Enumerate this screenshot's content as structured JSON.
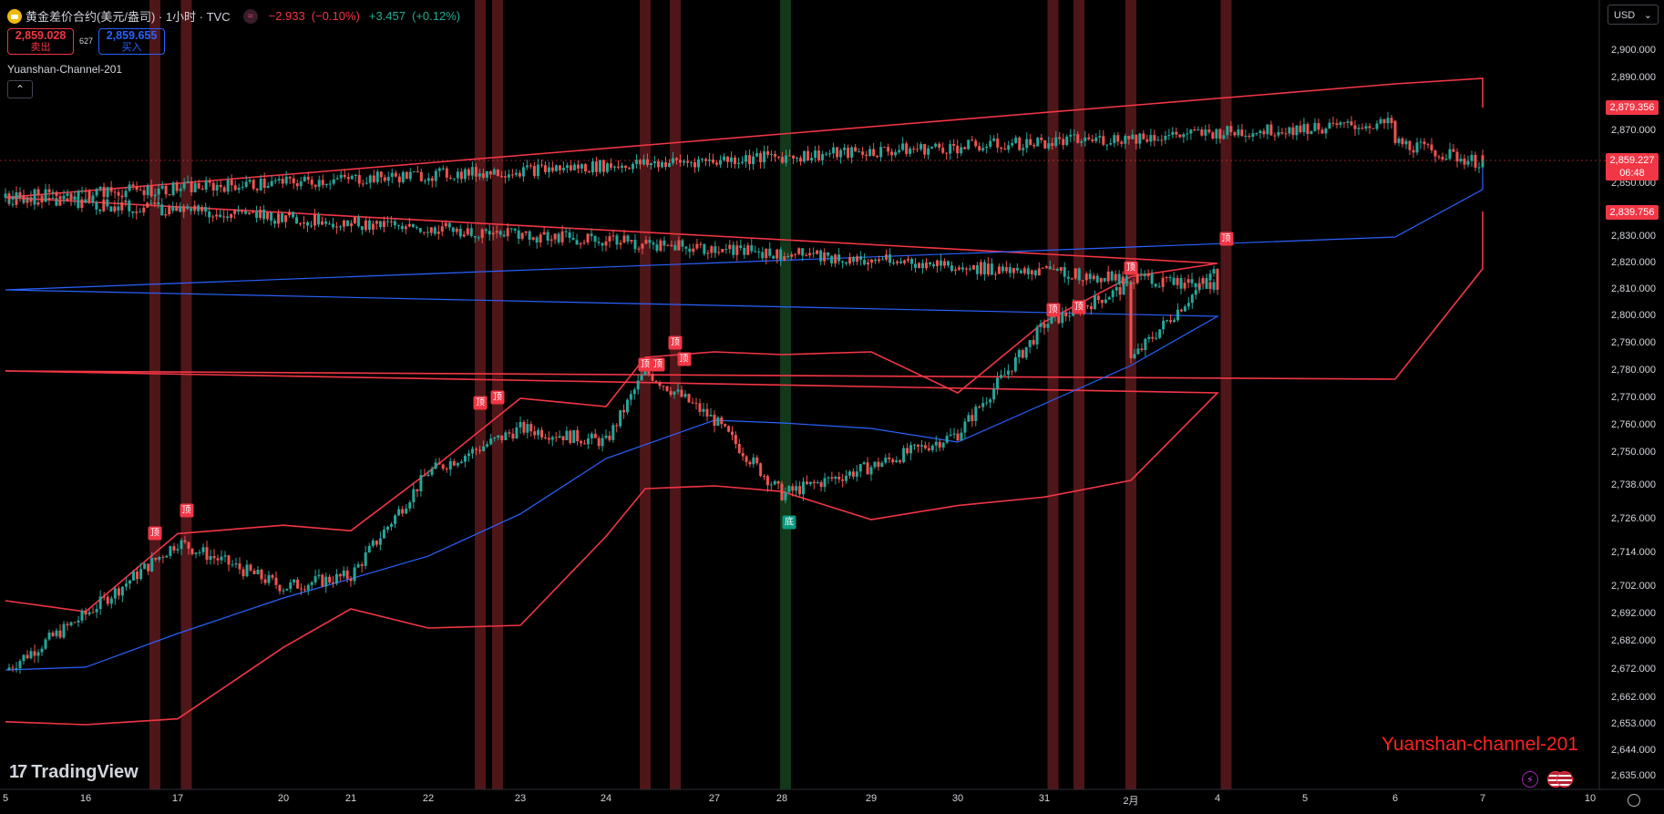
{
  "header": {
    "title": "黄金差价合约(美元/盎司) · 1小时 · TVC",
    "change_abs": "−2.933",
    "change_pct": "(−0.10%)",
    "change2_abs": "+3.457",
    "change2_pct": "(+0.12%)",
    "wave_icon": "≈"
  },
  "trade": {
    "sell_price": "2,859.028",
    "sell_label": "卖出",
    "spread": "627",
    "buy_price": "2,859.655",
    "buy_label": "买入"
  },
  "indicator": {
    "name": "Yuanshan-Channel-201",
    "collapse": "⌃"
  },
  "currency": {
    "label": "USD",
    "arrow": "⌄"
  },
  "price_axis": {
    "ticks": [
      "2,900.000",
      "2,890.000",
      "2,879.356",
      "2,870.000",
      "2,859.227",
      "2,850.000",
      "2,839.756",
      "2,830.000",
      "2,820.000",
      "2,810.000",
      "2,800.000",
      "2,790.000",
      "2,780.000",
      "2,770.000",
      "2,760.000",
      "2,750.000",
      "2,738.000",
      "2,726.000",
      "2,714.000",
      "2,702.000",
      "2,692.000",
      "2,682.000",
      "2,672.000",
      "2,662.000",
      "2,653.000",
      "2,644.000",
      "2,635.000"
    ],
    "plain_ticks": [
      "2,900.000",
      "2,890.000",
      "2,870.000",
      "2,850.000",
      "2,830.000",
      "2,820.000",
      "2,810.000",
      "2,800.000",
      "2,790.000",
      "2,780.000",
      "2,770.000",
      "2,760.000",
      "2,750.000",
      "2,738.000",
      "2,726.000",
      "2,714.000",
      "2,702.000",
      "2,692.000",
      "2,682.000",
      "2,672.000",
      "2,662.000",
      "2,653.000",
      "2,644.000",
      "2,635.000"
    ],
    "tag_upper": "2,879.356",
    "tag_current": "2,859.227",
    "tag_countdown": "06:48",
    "tag_lower": "2,839.756"
  },
  "time_axis": {
    "labels": [
      "5",
      "16",
      "17",
      "20",
      "21",
      "22",
      "23",
      "24",
      "27",
      "28",
      "29",
      "30",
      "31",
      "2月",
      "4",
      "5",
      "6",
      "7",
      "10"
    ]
  },
  "signals": {
    "top_label": "顶",
    "bottom_label": "底"
  },
  "branding": {
    "tradingview": "TradingView",
    "tv_mark": "17",
    "watermark": "Yuanshan-channel-201"
  },
  "colors": {
    "up": "#26a69a",
    "down": "#ef5350",
    "band": "#f23645",
    "mid": "#2962ff",
    "top_zone": "#5c1a1c",
    "bottom_zone": "#143d1c",
    "bg": "#000000",
    "watermark": "#ff2222"
  },
  "chart_data": {
    "type": "candlestick",
    "symbol": "黄金差价合约(美元/盎司)",
    "interval": "1小时",
    "source": "TVC",
    "x": [
      "5",
      "16",
      "17",
      "20",
      "21",
      "22",
      "23",
      "24",
      "27",
      "28",
      "29",
      "30",
      "31",
      "2月",
      "4",
      "5",
      "6",
      "7",
      "10"
    ],
    "ylim": [
      2635,
      2905
    ],
    "close_path": [
      [
        "5",
        2672
      ],
      [
        "16",
        2692
      ],
      [
        "17",
        2718
      ],
      [
        "20",
        2702
      ],
      [
        "21",
        2706
      ],
      [
        "22",
        2743
      ],
      [
        "23",
        2759
      ],
      [
        "24",
        2754
      ],
      [
        "24.4",
        2780
      ],
      [
        "27",
        2762
      ],
      [
        "28",
        2735
      ],
      [
        "29",
        2745
      ],
      [
        "30",
        2757
      ],
      [
        "31",
        2797
      ],
      [
        "2月",
        2812
      ],
      [
        "2月",
        2784
      ],
      [
        "4",
        2818
      ],
      [
        "4",
        2812
      ],
      [
        "5",
        2845
      ],
      [
        "6",
        2873
      ],
      [
        "6",
        2866
      ],
      [
        "7",
        2858
      ],
      [
        "7",
        2859.227
      ]
    ],
    "upper_band": [
      [
        "5",
        2697
      ],
      [
        "16",
        2693
      ],
      [
        "17",
        2721
      ],
      [
        "20",
        2724
      ],
      [
        "21",
        2722
      ],
      [
        "22",
        2743
      ],
      [
        "23",
        2770
      ],
      [
        "24",
        2767
      ],
      [
        "24.4",
        2785
      ],
      [
        "27",
        2787
      ],
      [
        "28",
        2786
      ],
      [
        "29",
        2787
      ],
      [
        "30",
        2772
      ],
      [
        "31",
        2798
      ],
      [
        "2月",
        2815
      ],
      [
        "4",
        2820
      ],
      [
        "5",
        2845
      ],
      [
        "6",
        2888
      ],
      [
        "7",
        2890
      ],
      [
        "7",
        2879.356
      ]
    ],
    "mid_line": [
      [
        "5",
        2672
      ],
      [
        "16",
        2673
      ],
      [
        "17",
        2685
      ],
      [
        "20",
        2698
      ],
      [
        "21",
        2705
      ],
      [
        "22",
        2713
      ],
      [
        "23",
        2728
      ],
      [
        "24",
        2748
      ],
      [
        "27",
        2762
      ],
      [
        "28",
        2761
      ],
      [
        "29",
        2759
      ],
      [
        "30",
        2754
      ],
      [
        "31",
        2768
      ],
      [
        "2月",
        2782
      ],
      [
        "4",
        2800
      ],
      [
        "5",
        2810
      ],
      [
        "6",
        2830
      ],
      [
        "7",
        2848
      ],
      [
        "7",
        2858
      ]
    ],
    "lower_band": [
      [
        "5",
        2654
      ],
      [
        "16",
        2653
      ],
      [
        "17",
        2655
      ],
      [
        "20",
        2680
      ],
      [
        "21",
        2694
      ],
      [
        "22",
        2687
      ],
      [
        "23",
        2688
      ],
      [
        "24",
        2720
      ],
      [
        "24.4",
        2737
      ],
      [
        "27",
        2738
      ],
      [
        "28",
        2736
      ],
      [
        "29",
        2726
      ],
      [
        "30",
        2731
      ],
      [
        "31",
        2734
      ],
      [
        "2月",
        2740
      ],
      [
        "4",
        2772
      ],
      [
        "5",
        2780
      ],
      [
        "6",
        2777
      ],
      [
        "7",
        2818
      ],
      [
        "7",
        2839.756
      ]
    ],
    "top_zones": [
      "16.8",
      "17.1",
      "22.6",
      "22.8",
      "24.4",
      "24.8",
      "31.1",
      "31.4",
      "2月",
      "4.1"
    ],
    "bottom_zones": [
      "28"
    ],
    "top_signals": [
      [
        "16.8",
        2718
      ],
      [
        "17.1",
        2726
      ],
      [
        "22.6",
        2765
      ],
      [
        "22.8",
        2767
      ],
      [
        "24.4",
        2779
      ],
      [
        "24.6",
        2779
      ],
      [
        "24.8",
        2787
      ],
      [
        "24.9",
        2781
      ],
      [
        "31.1",
        2799
      ],
      [
        "31.4",
        2800
      ],
      [
        "2月",
        2815
      ],
      [
        "4.1",
        2826
      ]
    ],
    "bottom_signals": [
      [
        "28",
        2729
      ]
    ],
    "last_price": 2859.227
  }
}
